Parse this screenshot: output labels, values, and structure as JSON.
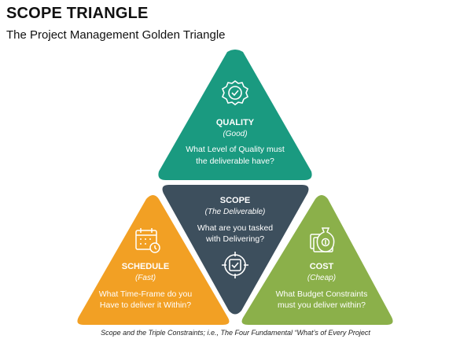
{
  "page": {
    "title": "SCOPE TRIANGLE",
    "subtitle": "The Project Management Golden Triangle",
    "caption": "Scope and the Triple Constraints; i.e., The Four Fundamental “What’s of Every Project"
  },
  "triangles": {
    "quality": {
      "heading": "QUALITY",
      "sub": "(Good)",
      "line1": "What Level of Quality must",
      "line2": "the deliverable have?",
      "color": "#1a9a80",
      "icon": "quality-badge-icon"
    },
    "scope": {
      "heading": "SCOPE",
      "sub": "(The Deliverable)",
      "line1": "What are you tasked",
      "line2": "with Delivering?",
      "color": "#3d4f5d",
      "icon": "target-check-icon"
    },
    "schedule": {
      "heading": "SCHEDULE",
      "sub": "(Fast)",
      "line1": "What Time-Frame do you",
      "line2": "Have to deliver it Within?",
      "color": "#f2a024",
      "icon": "calendar-clock-icon"
    },
    "cost": {
      "heading": "COST",
      "sub": "(Cheap)",
      "line1": "What Budget Constraints",
      "line2": "must you deliver within?",
      "color": "#8bb04a",
      "icon": "money-bag-icon"
    }
  }
}
